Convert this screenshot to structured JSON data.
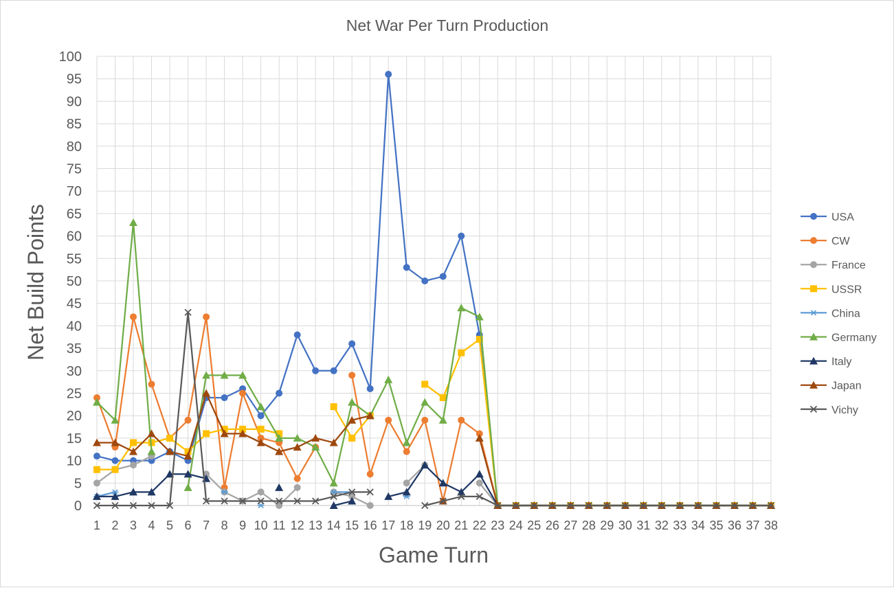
{
  "chart_data": {
    "type": "line",
    "title": "Net War Per Turn Production",
    "xlabel": "Game Turn",
    "ylabel": "Net Build Points",
    "ylim": [
      0,
      100
    ],
    "ytick_step": 5,
    "grid": true,
    "legend_position": "right",
    "categories": [
      1,
      2,
      3,
      4,
      5,
      6,
      7,
      8,
      9,
      10,
      11,
      12,
      13,
      14,
      15,
      16,
      17,
      18,
      19,
      20,
      21,
      22,
      23,
      24,
      25,
      26,
      27,
      28,
      29,
      30,
      31,
      32,
      33,
      34,
      35,
      36,
      37,
      38
    ],
    "series": [
      {
        "name": "USA",
        "color": "#4472C4",
        "marker": "circle",
        "values": [
          11,
          10,
          10,
          10,
          12,
          10,
          24,
          24,
          26,
          20,
          25,
          38,
          30,
          30,
          36,
          26,
          96,
          53,
          50,
          51,
          60,
          38,
          0,
          0,
          0,
          0,
          0,
          0,
          0,
          0,
          0,
          0,
          0,
          0,
          0,
          0,
          0,
          0
        ]
      },
      {
        "name": "CW",
        "color": "#ED7D31",
        "marker": "circle",
        "values": [
          24,
          13,
          42,
          27,
          15,
          19,
          42,
          4,
          25,
          15,
          14,
          6,
          13,
          null,
          29,
          7,
          19,
          12,
          19,
          1,
          19,
          16,
          0,
          0,
          0,
          0,
          0,
          0,
          0,
          0,
          0,
          0,
          0,
          0,
          0,
          0,
          0,
          0
        ]
      },
      {
        "name": "France",
        "color": "#A5A5A5",
        "marker": "circle",
        "values": [
          5,
          8,
          9,
          11,
          null,
          null,
          7,
          3,
          1,
          3,
          0,
          4,
          null,
          3,
          2,
          0,
          null,
          5,
          9,
          null,
          null,
          5,
          0,
          0,
          0,
          0,
          0,
          0,
          0,
          0,
          0,
          0,
          0,
          0,
          0,
          0,
          0,
          0
        ]
      },
      {
        "name": "USSR",
        "color": "#FFC000",
        "marker": "square",
        "values": [
          8,
          8,
          14,
          14,
          15,
          12,
          16,
          17,
          17,
          17,
          16,
          null,
          null,
          22,
          15,
          20,
          null,
          null,
          27,
          24,
          34,
          37,
          0,
          0,
          0,
          0,
          0,
          0,
          0,
          0,
          0,
          0,
          0,
          0,
          0,
          0,
          0,
          0
        ]
      },
      {
        "name": "China",
        "color": "#5B9BD5",
        "marker": "star",
        "values": [
          2,
          3,
          null,
          0,
          null,
          null,
          null,
          3,
          null,
          0,
          null,
          null,
          null,
          3,
          3,
          null,
          null,
          2,
          null,
          null,
          null,
          null,
          0,
          0,
          0,
          0,
          0,
          0,
          0,
          0,
          0,
          0,
          0,
          0,
          0,
          0,
          0,
          0
        ]
      },
      {
        "name": "Germany",
        "color": "#70AD47",
        "marker": "triangle",
        "values": [
          23,
          19,
          63,
          12,
          null,
          4,
          29,
          29,
          29,
          22,
          15,
          15,
          13,
          5,
          23,
          20,
          28,
          14,
          23,
          19,
          44,
          42,
          0,
          0,
          0,
          0,
          0,
          0,
          0,
          0,
          0,
          0,
          0,
          0,
          0,
          0,
          0,
          0
        ]
      },
      {
        "name": "Italy",
        "color": "#1F3864",
        "marker": "triangle",
        "values": [
          2,
          2,
          3,
          3,
          7,
          7,
          6,
          null,
          null,
          null,
          4,
          null,
          null,
          0,
          1,
          null,
          2,
          3,
          9,
          5,
          3,
          7,
          0,
          0,
          0,
          0,
          0,
          0,
          0,
          0,
          0,
          0,
          0,
          0,
          0,
          0,
          0,
          0
        ]
      },
      {
        "name": "Japan",
        "color": "#9E480E",
        "marker": "triangle",
        "values": [
          14,
          14,
          12,
          16,
          12,
          11,
          25,
          16,
          16,
          14,
          12,
          13,
          15,
          14,
          19,
          20,
          null,
          null,
          null,
          1,
          null,
          15,
          0,
          0,
          0,
          0,
          0,
          0,
          0,
          0,
          0,
          0,
          0,
          0,
          0,
          0,
          0,
          0
        ]
      },
      {
        "name": "Vichy",
        "color": "#595959",
        "marker": "x",
        "values": [
          0,
          0,
          0,
          0,
          0,
          43,
          1,
          1,
          1,
          1,
          1,
          1,
          1,
          2,
          3,
          3,
          null,
          null,
          0,
          1,
          2,
          2,
          0,
          0,
          0,
          0,
          0,
          0,
          0,
          0,
          0,
          0,
          0,
          0,
          0,
          0,
          0,
          0
        ]
      }
    ]
  }
}
